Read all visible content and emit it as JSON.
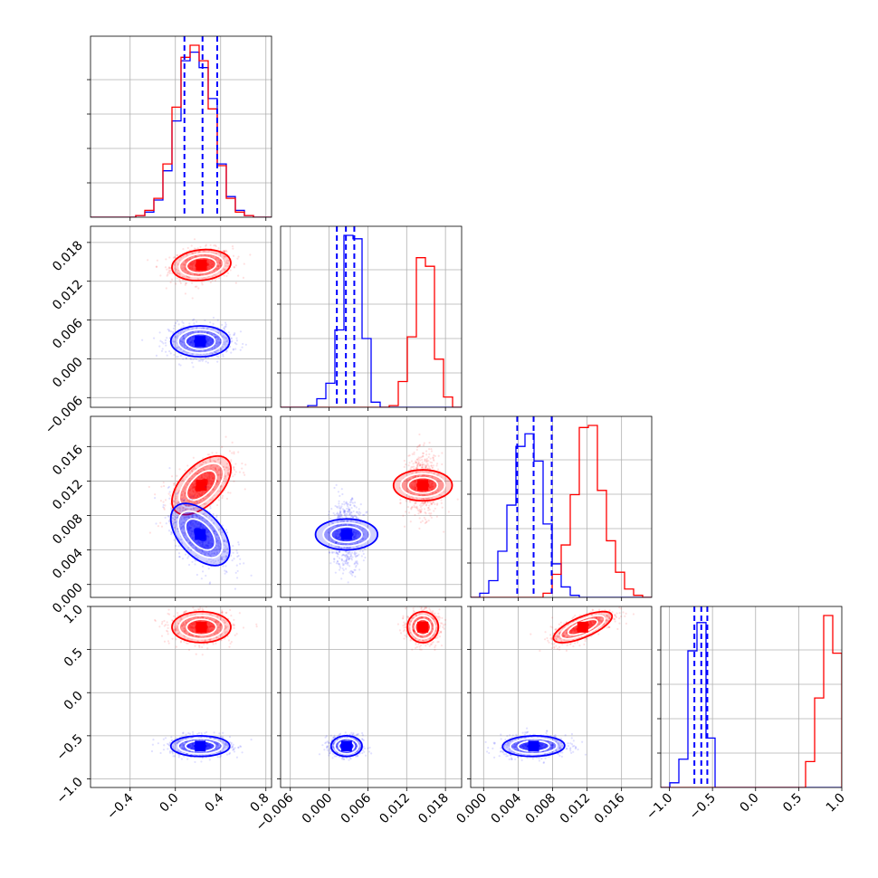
{
  "chart_data": {
    "type": "corner",
    "n_params": 4,
    "grid": true,
    "params": [
      {
        "range": [
          -0.75,
          0.85
        ],
        "ticks": [
          -0.4,
          0.0,
          0.4,
          0.8
        ],
        "tick_labels": [
          "−0.4",
          "0.0",
          "0.4",
          "0.8"
        ]
      },
      {
        "range": [
          -0.0075,
          0.0205
        ],
        "ticks": [
          -0.006,
          0.0,
          0.006,
          0.012,
          0.018
        ],
        "tick_labels": [
          "−0.006",
          "0.000",
          "0.006",
          "0.012",
          "0.018"
        ]
      },
      {
        "range": [
          -0.0015,
          0.0195
        ],
        "ticks": [
          0.0,
          0.004,
          0.008,
          0.012,
          0.016
        ],
        "tick_labels": [
          "0.000",
          "0.004",
          "0.008",
          "0.012",
          "0.016"
        ]
      },
      {
        "range": [
          -1.1,
          1.0
        ],
        "ticks": [
          -1.0,
          -0.5,
          0.0,
          0.5,
          1.0
        ],
        "tick_labels": [
          "−1.0",
          "−0.5",
          "0.0",
          "0.5",
          "1.0"
        ]
      }
    ],
    "series": [
      {
        "color": "#ff0000",
        "mean": [
          0.23,
          0.0145,
          0.0115,
          0.76
        ],
        "std": [
          0.13,
          0.0012,
          0.0017,
          0.09
        ],
        "corr": {
          "0-2": 0.55,
          "2-3": 0.7,
          "0-1": 0.15
        }
      },
      {
        "color": "#0000ff",
        "mean": [
          0.22,
          0.0027,
          0.0058,
          -0.62
        ],
        "std": [
          0.13,
          0.0012,
          0.0018,
          0.06
        ],
        "corr": {
          "0-2": -0.5,
          "2-3": 0.05,
          "0-1": 0.0
        }
      }
    ],
    "quantile_lines": {
      "color": "#0000ff",
      "values": [
        [
          0.08,
          0.24,
          0.37
        ],
        [
          0.0012,
          0.0026,
          0.0039
        ],
        [
          0.0039,
          0.0058,
          0.0079
        ],
        [
          -0.71,
          -0.63,
          -0.56
        ]
      ]
    },
    "diag_hist": [
      {
        "edges": [
          -0.75,
          -0.67,
          -0.59,
          -0.51,
          -0.43,
          -0.35,
          -0.27,
          -0.19,
          -0.11,
          -0.03,
          0.05,
          0.13,
          0.21,
          0.29,
          0.37,
          0.45,
          0.53,
          0.61,
          0.69,
          0.77,
          0.85
        ],
        "red": [
          0,
          0,
          0,
          0,
          0,
          1,
          4,
          11,
          31,
          64,
          93,
          100,
          91,
          63,
          30,
          11,
          3,
          1,
          0,
          0
        ],
        "blue": [
          0,
          0,
          0,
          0,
          0,
          1,
          3,
          10,
          27,
          56,
          91,
          96,
          87,
          69,
          31,
          12,
          4,
          1,
          0,
          0
        ]
      },
      {
        "edges": [
          -0.0075,
          -0.0061,
          -0.0047,
          -0.0033,
          -0.0019,
          -0.0005,
          0.0009,
          0.0023,
          0.0037,
          0.0051,
          0.0065,
          0.0079,
          0.0093,
          0.0107,
          0.0121,
          0.0135,
          0.0149,
          0.0163,
          0.0177,
          0.0191,
          0.0205
        ],
        "red": [
          0,
          0,
          0,
          0,
          0,
          0,
          0,
          0,
          0,
          0,
          0,
          0,
          1,
          15,
          41,
          87,
          82,
          28,
          6,
          0
        ],
        "blue": [
          0,
          0,
          0,
          1,
          5,
          14,
          45,
          100,
          98,
          40,
          3,
          0,
          0,
          0,
          0,
          0,
          0,
          0,
          0,
          0
        ]
      },
      {
        "edges": [
          -0.0015,
          -0.00045,
          0.0006,
          0.00165,
          0.0027,
          0.00375,
          0.0048,
          0.00585,
          0.0069,
          0.00795,
          0.009,
          0.01005,
          0.0111,
          0.01215,
          0.0132,
          0.01425,
          0.0153,
          0.01635,
          0.0174,
          0.01845,
          0.0195
        ],
        "red": [
          0,
          0,
          0,
          0,
          0,
          0,
          0,
          0,
          2,
          11,
          25,
          49,
          81,
          82,
          51,
          27,
          12,
          4,
          1,
          0
        ],
        "blue": [
          0,
          2,
          8,
          22,
          44,
          72,
          78,
          65,
          35,
          16,
          5,
          1,
          0,
          0,
          0,
          0,
          0,
          0,
          0,
          0
        ]
      },
      {
        "edges": [
          -1.1,
          -0.995,
          -0.89,
          -0.785,
          -0.68,
          -0.575,
          -0.47,
          -0.365,
          -0.26,
          -0.155,
          -0.05,
          0.055,
          0.16,
          0.265,
          0.37,
          0.475,
          0.58,
          0.685,
          0.79,
          0.895,
          1.0
        ],
        "red": [
          0,
          0,
          0,
          0,
          0,
          0,
          0,
          0,
          0,
          0,
          0,
          0,
          0,
          0,
          0,
          0,
          11,
          38,
          73,
          57
        ],
        "blue": [
          0,
          2,
          12,
          58,
          70,
          21,
          0,
          0,
          0,
          0,
          0,
          0,
          0,
          0,
          0,
          0,
          0,
          0,
          0,
          0
        ]
      }
    ]
  }
}
